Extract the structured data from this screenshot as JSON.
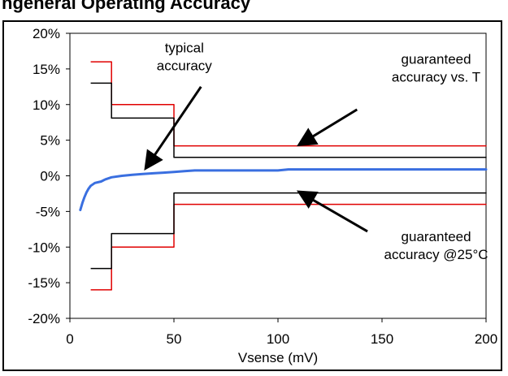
{
  "page": {
    "title": "ngeneral Operating Accuracy"
  },
  "chart_data": {
    "type": "line",
    "title": "",
    "xlabel": "Vsense (mV)",
    "ylabel": "",
    "xlim": [
      0,
      200
    ],
    "ylim": [
      -20,
      20
    ],
    "xticks": [
      0,
      50,
      100,
      150,
      200
    ],
    "xtick_labels": [
      "0",
      "50",
      "100",
      "150",
      "200"
    ],
    "yticks": [
      -20,
      -15,
      -10,
      -5,
      0,
      5,
      10,
      15,
      20
    ],
    "ytick_labels": [
      "-20%",
      "-15%",
      "-10%",
      "-5%",
      "0%",
      "5%",
      "10%",
      "15%",
      "20%"
    ],
    "grid": false,
    "colors": {
      "typical": "#3a6fe0",
      "guaranteed_vs_T": "#e00000",
      "guaranteed_25C": "#000000",
      "arrows": "#000000"
    },
    "series": [
      {
        "key": "typical",
        "x": [
          5,
          6,
          7,
          8,
          9,
          10,
          12,
          15,
          17,
          20,
          25,
          30,
          35,
          40,
          45,
          50,
          55,
          60,
          70,
          80,
          90,
          100,
          105,
          110,
          120,
          130,
          140,
          150,
          160,
          170,
          180,
          190,
          200
        ],
        "y": [
          -4.8,
          -3.8,
          -3.0,
          -2.3,
          -1.8,
          -1.4,
          -1.0,
          -0.8,
          -0.5,
          -0.2,
          0.0,
          0.15,
          0.25,
          0.35,
          0.45,
          0.55,
          0.65,
          0.75,
          0.75,
          0.75,
          0.75,
          0.75,
          0.9,
          0.9,
          0.9,
          0.9,
          0.9,
          0.9,
          0.9,
          0.9,
          0.9,
          0.9,
          0.9
        ]
      },
      {
        "key": "upper-red",
        "x": [
          20,
          20,
          50,
          50,
          200
        ],
        "y": [
          16,
          10,
          10,
          4.2,
          4.2
        ]
      },
      {
        "key": "lower-red",
        "x": [
          20,
          20,
          50,
          50,
          200
        ],
        "y": [
          -16,
          -10,
          -10,
          -4.0,
          -4.0
        ]
      },
      {
        "key": "upper-black",
        "x": [
          20,
          20,
          50,
          50,
          200
        ],
        "y": [
          13,
          8.1,
          8.1,
          2.6,
          2.6
        ]
      },
      {
        "key": "lower-black",
        "x": [
          20,
          20,
          50,
          50,
          200
        ],
        "y": [
          -13,
          -8.1,
          -8.1,
          -2.4,
          -2.4
        ]
      }
    ],
    "stubs": [
      {
        "key": "stub-upper-red",
        "x": [
          10,
          20
        ],
        "y": [
          16,
          16
        ],
        "color": "#e00000"
      },
      {
        "key": "stub-lower-red",
        "x": [
          10,
          20
        ],
        "y": [
          -16,
          -16
        ],
        "color": "#e00000"
      },
      {
        "key": "stub-upper-black",
        "x": [
          10,
          20
        ],
        "y": [
          13,
          13
        ],
        "color": "#000000"
      },
      {
        "key": "stub-lower-black",
        "x": [
          10,
          20
        ],
        "y": [
          -13,
          -13
        ],
        "color": "#000000"
      }
    ],
    "annotations": [
      {
        "key": "typical",
        "lines": [
          "typical",
          "accuracy"
        ],
        "text_x": 55,
        "text_y": 17.3,
        "arrow_from": [
          63,
          12.5
        ],
        "arrow_to": [
          37,
          1.3
        ]
      },
      {
        "key": "vs-t",
        "lines": [
          "guaranteed",
          "accuracy vs. T"
        ],
        "text_x": 176,
        "text_y": 15.7,
        "arrow_from": [
          138,
          9.3
        ],
        "arrow_to": [
          111,
          4.5
        ]
      },
      {
        "key": "at-25c",
        "lines": [
          "guaranteed",
          "accuracy @25°C"
        ],
        "text_x": 176,
        "text_y": -9.2,
        "arrow_from": [
          143,
          -7.8
        ],
        "arrow_to": [
          111,
          -2.4
        ]
      }
    ]
  }
}
